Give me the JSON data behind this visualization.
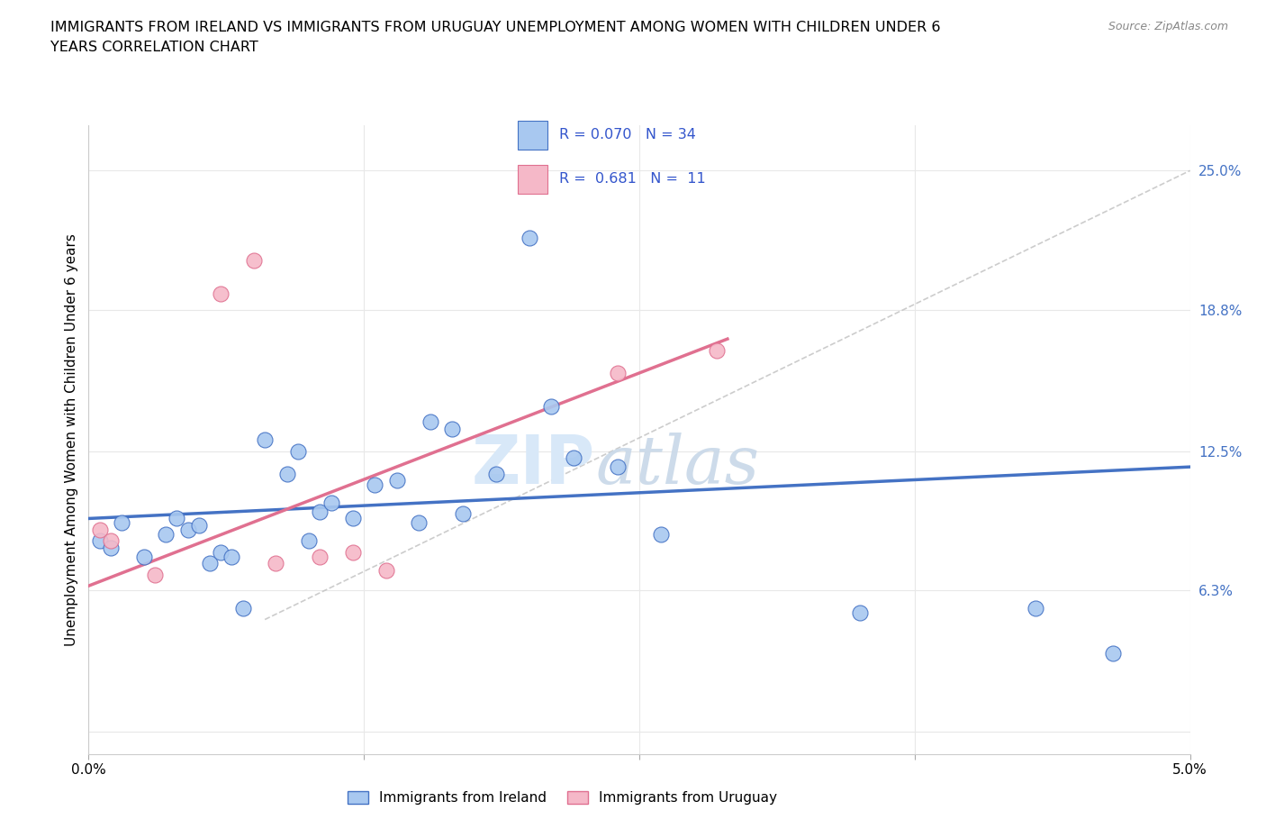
{
  "title": "IMMIGRANTS FROM IRELAND VS IMMIGRANTS FROM URUGUAY UNEMPLOYMENT AMONG WOMEN WITH CHILDREN UNDER 6\nYEARS CORRELATION CHART",
  "source": "Source: ZipAtlas.com",
  "ylabel": "Unemployment Among Women with Children Under 6 years",
  "legend_label1": "Immigrants from Ireland",
  "legend_label2": "Immigrants from Uruguay",
  "color_ireland": "#a8c8f0",
  "color_uruguay": "#f5b8c8",
  "color_ireland_edge": "#4472c4",
  "color_uruguay_edge": "#e07090",
  "color_ireland_line": "#4472c4",
  "color_uruguay_line": "#e07090",
  "color_ref_line": "#c0c0c0",
  "color_grid": "#e8e8e8",
  "color_legend_text": "#3355cc",
  "watermark_color": "#d8e8f8",
  "xlim": [
    0.0,
    5.0
  ],
  "ylim": [
    -1.0,
    27.0
  ],
  "x_ticks": [
    0.0,
    1.25,
    2.5,
    3.75,
    5.0
  ],
  "x_tick_labels": [
    "0.0%",
    "",
    "",
    "",
    "5.0%"
  ],
  "y_right_ticks": [
    0.0,
    6.3,
    12.5,
    18.8,
    25.0
  ],
  "y_right_labels": [
    "",
    "6.3%",
    "12.5%",
    "18.8%",
    "25.0%"
  ],
  "ireland_x": [
    0.05,
    0.1,
    0.15,
    0.25,
    0.35,
    0.4,
    0.45,
    0.5,
    0.55,
    0.6,
    0.65,
    0.7,
    0.8,
    0.9,
    0.95,
    1.0,
    1.05,
    1.1,
    1.2,
    1.3,
    1.4,
    1.5,
    1.55,
    1.65,
    1.7,
    1.85,
    2.0,
    2.1,
    2.2,
    2.4,
    2.6,
    3.5,
    4.3,
    4.65
  ],
  "ireland_y": [
    8.5,
    8.2,
    9.3,
    7.8,
    8.8,
    9.5,
    9.0,
    9.2,
    7.5,
    8.0,
    7.8,
    5.5,
    13.0,
    11.5,
    12.5,
    8.5,
    9.8,
    10.2,
    9.5,
    11.0,
    11.2,
    9.3,
    13.8,
    13.5,
    9.7,
    11.5,
    22.0,
    14.5,
    12.2,
    11.8,
    8.8,
    5.3,
    5.5,
    3.5
  ],
  "uruguay_x": [
    0.05,
    0.1,
    0.3,
    0.6,
    0.75,
    0.85,
    1.05,
    1.2,
    1.35,
    2.4,
    2.85
  ],
  "uruguay_y": [
    9.0,
    8.5,
    7.0,
    19.5,
    21.0,
    7.5,
    7.8,
    8.0,
    7.2,
    16.0,
    17.0
  ],
  "ireland_trendline_x": [
    0.0,
    5.0
  ],
  "ireland_trendline_y": [
    9.5,
    11.8
  ],
  "uruguay_trendline_x": [
    0.0,
    2.9
  ],
  "uruguay_trendline_y": [
    6.5,
    17.5
  ],
  "ref_line_x": [
    0.8,
    5.0
  ],
  "ref_line_y": [
    5.0,
    25.0
  ],
  "dot_size": 150
}
